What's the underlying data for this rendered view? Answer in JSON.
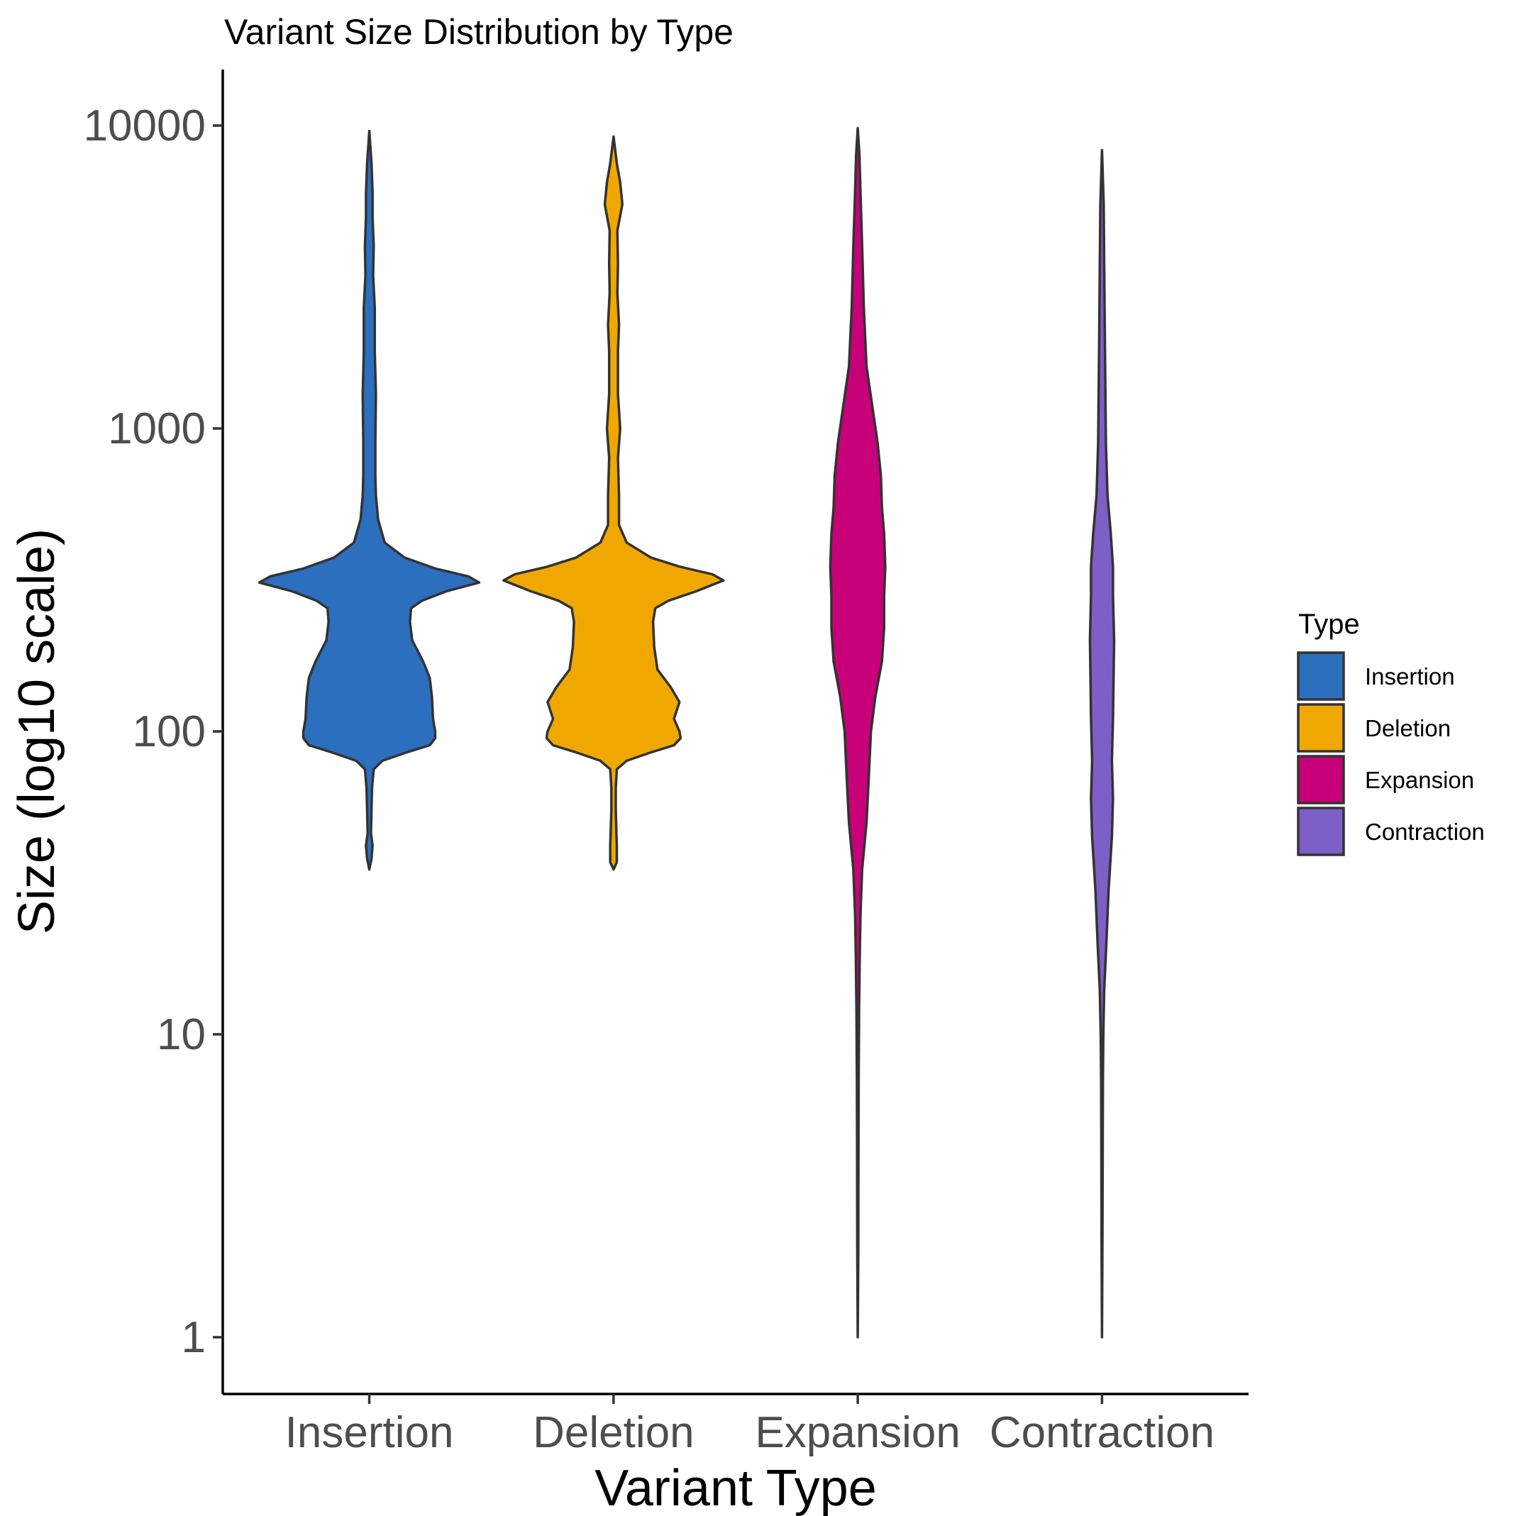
{
  "chart_data": {
    "type": "violin",
    "title": "Variant Size Distribution by Type",
    "xlabel": "Variant Type",
    "ylabel": "Size (log10 scale)",
    "y_scale": "log10",
    "ylim": [
      0.7,
      16
    ],
    "y_ticks": [
      1,
      10,
      100,
      1000,
      10000
    ],
    "y_tick_labels": [
      "1",
      "10",
      "100",
      "1000",
      "10000"
    ],
    "grid": false,
    "legend": {
      "title": "Type",
      "position": "right",
      "entries": [
        {
          "label": "Insertion",
          "color": "#2B6FBE"
        },
        {
          "label": "Deletion",
          "color": "#F0A800"
        },
        {
          "label": "Expansion",
          "color": "#C8007A"
        },
        {
          "label": "Contraction",
          "color": "#7E5EC7"
        }
      ]
    },
    "categories": [
      "Insertion",
      "Deletion",
      "Expansion",
      "Contraction"
    ],
    "series": [
      {
        "name": "Insertion",
        "color": "#2B6FBE",
        "density": [
          [
            35,
            0.0
          ],
          [
            38,
            0.02
          ],
          [
            42,
            0.03
          ],
          [
            46,
            0.015
          ],
          [
            55,
            0.02
          ],
          [
            65,
            0.025
          ],
          [
            75,
            0.04
          ],
          [
            80,
            0.12
          ],
          [
            85,
            0.33
          ],
          [
            90,
            0.55
          ],
          [
            95,
            0.6
          ],
          [
            100,
            0.6
          ],
          [
            110,
            0.58
          ],
          [
            130,
            0.57
          ],
          [
            150,
            0.55
          ],
          [
            170,
            0.49
          ],
          [
            200,
            0.39
          ],
          [
            230,
            0.37
          ],
          [
            255,
            0.38
          ],
          [
            270,
            0.48
          ],
          [
            290,
            0.7
          ],
          [
            310,
            1.0
          ],
          [
            325,
            0.9
          ],
          [
            345,
            0.6
          ],
          [
            375,
            0.32
          ],
          [
            420,
            0.14
          ],
          [
            500,
            0.08
          ],
          [
            600,
            0.06
          ],
          [
            700,
            0.055
          ],
          [
            900,
            0.055
          ],
          [
            1300,
            0.06
          ],
          [
            1800,
            0.05
          ],
          [
            2500,
            0.05
          ],
          [
            3200,
            0.035
          ],
          [
            4000,
            0.04
          ],
          [
            5000,
            0.03
          ],
          [
            6000,
            0.03
          ],
          [
            7500,
            0.02
          ],
          [
            9600,
            0.0
          ]
        ]
      },
      {
        "name": "Deletion",
        "color": "#F0A800",
        "density": [
          [
            35,
            0.0
          ],
          [
            37,
            0.03
          ],
          [
            42,
            0.03
          ],
          [
            48,
            0.025
          ],
          [
            55,
            0.02
          ],
          [
            65,
            0.02
          ],
          [
            75,
            0.03
          ],
          [
            80,
            0.12
          ],
          [
            85,
            0.33
          ],
          [
            90,
            0.55
          ],
          [
            95,
            0.61
          ],
          [
            100,
            0.6
          ],
          [
            110,
            0.55
          ],
          [
            125,
            0.6
          ],
          [
            140,
            0.52
          ],
          [
            160,
            0.4
          ],
          [
            190,
            0.37
          ],
          [
            230,
            0.36
          ],
          [
            255,
            0.38
          ],
          [
            270,
            0.5
          ],
          [
            290,
            0.75
          ],
          [
            315,
            1.0
          ],
          [
            330,
            0.9
          ],
          [
            350,
            0.6
          ],
          [
            375,
            0.34
          ],
          [
            420,
            0.12
          ],
          [
            480,
            0.05
          ],
          [
            600,
            0.05
          ],
          [
            800,
            0.04
          ],
          [
            1000,
            0.06
          ],
          [
            1300,
            0.04
          ],
          [
            1800,
            0.04
          ],
          [
            2200,
            0.05
          ],
          [
            2800,
            0.035
          ],
          [
            3500,
            0.04
          ],
          [
            4500,
            0.035
          ],
          [
            5500,
            0.08
          ],
          [
            6500,
            0.06
          ],
          [
            7500,
            0.03
          ],
          [
            9200,
            0.0
          ]
        ]
      },
      {
        "name": "Expansion",
        "color": "#C8007A",
        "density": [
          [
            1,
            0.0
          ],
          [
            2,
            0.005
          ],
          [
            4,
            0.006
          ],
          [
            7,
            0.008
          ],
          [
            12,
            0.012
          ],
          [
            18,
            0.018
          ],
          [
            25,
            0.025
          ],
          [
            35,
            0.04
          ],
          [
            50,
            0.08
          ],
          [
            70,
            0.1
          ],
          [
            100,
            0.12
          ],
          [
            130,
            0.16
          ],
          [
            170,
            0.22
          ],
          [
            220,
            0.24
          ],
          [
            280,
            0.24
          ],
          [
            350,
            0.25
          ],
          [
            450,
            0.24
          ],
          [
            550,
            0.22
          ],
          [
            700,
            0.21
          ],
          [
            900,
            0.18
          ],
          [
            1200,
            0.13
          ],
          [
            1600,
            0.08
          ],
          [
            2500,
            0.055
          ],
          [
            4000,
            0.04
          ],
          [
            6000,
            0.025
          ],
          [
            8000,
            0.015
          ],
          [
            9800,
            0.0
          ]
        ]
      },
      {
        "name": "Contraction",
        "color": "#7E5EC7",
        "density": [
          [
            1,
            0.0
          ],
          [
            2,
            0.004
          ],
          [
            4,
            0.006
          ],
          [
            7,
            0.008
          ],
          [
            10,
            0.012
          ],
          [
            14,
            0.02
          ],
          [
            20,
            0.04
          ],
          [
            30,
            0.06
          ],
          [
            45,
            0.09
          ],
          [
            60,
            0.1
          ],
          [
            80,
            0.09
          ],
          [
            110,
            0.1
          ],
          [
            150,
            0.105
          ],
          [
            200,
            0.11
          ],
          [
            280,
            0.1
          ],
          [
            350,
            0.1
          ],
          [
            450,
            0.08
          ],
          [
            600,
            0.05
          ],
          [
            900,
            0.035
          ],
          [
            1400,
            0.03
          ],
          [
            2200,
            0.025
          ],
          [
            3500,
            0.02
          ],
          [
            5500,
            0.015
          ],
          [
            8300,
            0.0
          ]
        ]
      }
    ]
  }
}
